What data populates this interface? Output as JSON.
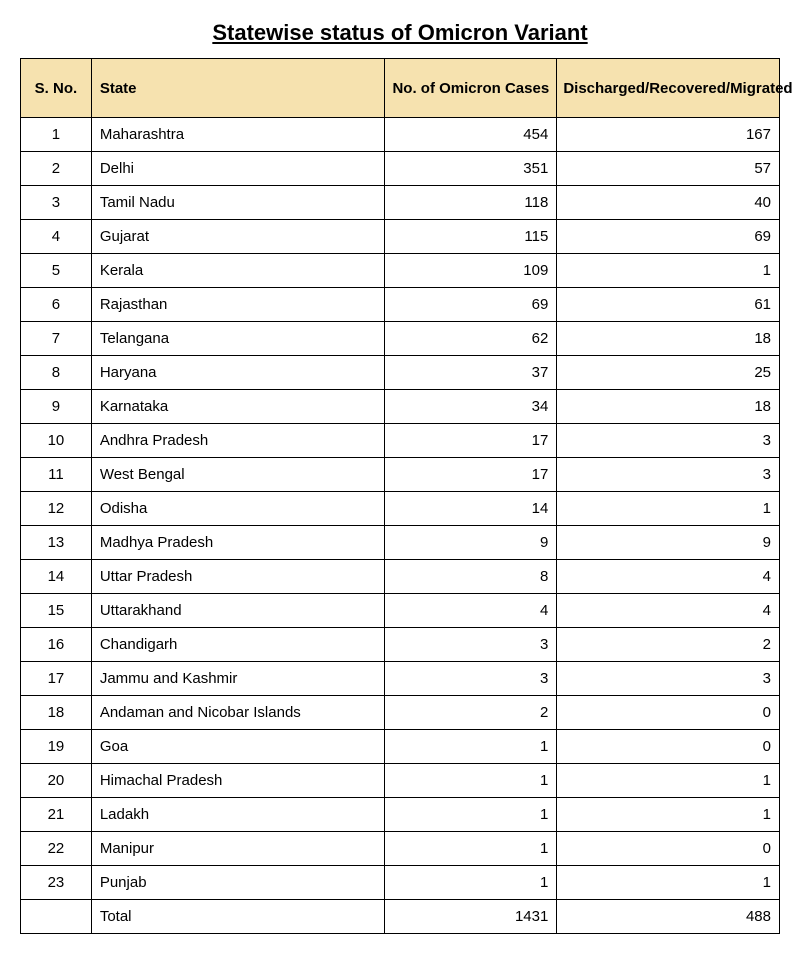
{
  "title": "Statewise status of Omicron Variant",
  "table": {
    "header_bg": "#f6e2af",
    "columns": [
      "S. No.",
      "State",
      "No. of Omicron Cases",
      "Discharged/Recovered/Migrated"
    ],
    "rows": [
      {
        "sno": "1",
        "state": "Maharashtra",
        "cases": "454",
        "discharged": "167"
      },
      {
        "sno": "2",
        "state": "Delhi",
        "cases": "351",
        "discharged": "57"
      },
      {
        "sno": "3",
        "state": "Tamil Nadu",
        "cases": "118",
        "discharged": "40"
      },
      {
        "sno": "4",
        "state": "Gujarat",
        "cases": "115",
        "discharged": "69"
      },
      {
        "sno": "5",
        "state": "Kerala",
        "cases": "109",
        "discharged": "1"
      },
      {
        "sno": "6",
        "state": "Rajasthan",
        "cases": "69",
        "discharged": "61"
      },
      {
        "sno": "7",
        "state": "Telangana",
        "cases": "62",
        "discharged": "18"
      },
      {
        "sno": "8",
        "state": "Haryana",
        "cases": "37",
        "discharged": "25"
      },
      {
        "sno": "9",
        "state": "Karnataka",
        "cases": "34",
        "discharged": "18"
      },
      {
        "sno": "10",
        "state": "Andhra Pradesh",
        "cases": "17",
        "discharged": "3"
      },
      {
        "sno": "11",
        "state": "West Bengal",
        "cases": "17",
        "discharged": "3"
      },
      {
        "sno": "12",
        "state": "Odisha",
        "cases": "14",
        "discharged": "1"
      },
      {
        "sno": "13",
        "state": "Madhya Pradesh",
        "cases": "9",
        "discharged": "9"
      },
      {
        "sno": "14",
        "state": "Uttar Pradesh",
        "cases": "8",
        "discharged": "4"
      },
      {
        "sno": "15",
        "state": "Uttarakhand",
        "cases": "4",
        "discharged": "4"
      },
      {
        "sno": "16",
        "state": "Chandigarh",
        "cases": "3",
        "discharged": "2"
      },
      {
        "sno": "17",
        "state": "Jammu and Kashmir",
        "cases": "3",
        "discharged": "3"
      },
      {
        "sno": "18",
        "state": "Andaman and Nicobar Islands",
        "cases": "2",
        "discharged": "0"
      },
      {
        "sno": "19",
        "state": "Goa",
        "cases": "1",
        "discharged": "0"
      },
      {
        "sno": "20",
        "state": "Himachal Pradesh",
        "cases": "1",
        "discharged": "1"
      },
      {
        "sno": "21",
        "state": "Ladakh",
        "cases": "1",
        "discharged": "1"
      },
      {
        "sno": "22",
        "state": "Manipur",
        "cases": "1",
        "discharged": "0"
      },
      {
        "sno": "23",
        "state": "Punjab",
        "cases": "1",
        "discharged": "1"
      }
    ],
    "total": {
      "sno": "",
      "state": "Total",
      "cases": "1431",
      "discharged": "488"
    }
  }
}
